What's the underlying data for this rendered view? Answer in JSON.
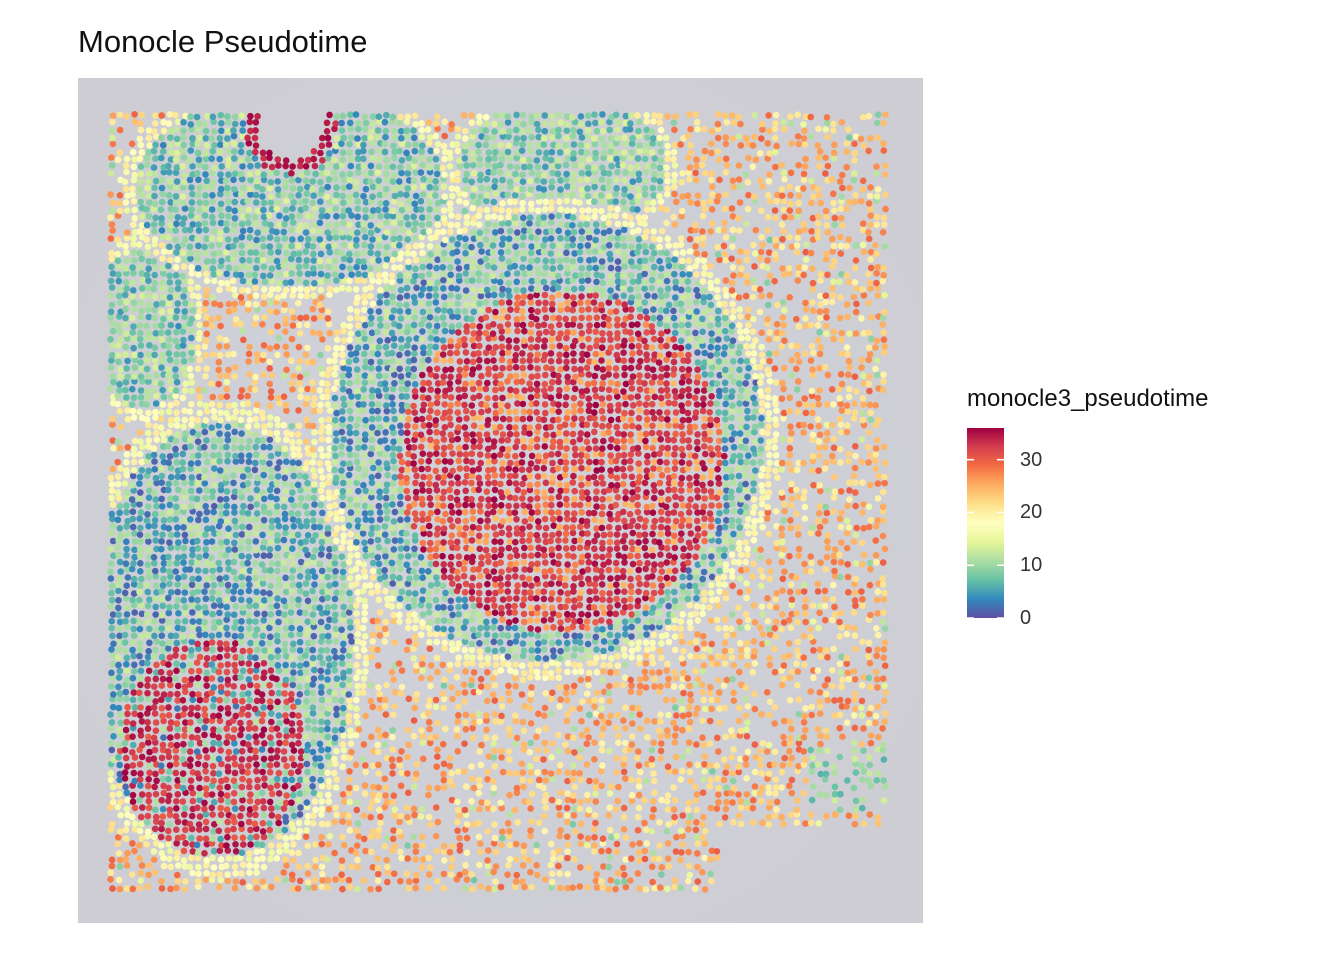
{
  "chart_data": {
    "type": "scatter",
    "title": "Monocle Pseudotime",
    "xlabel": "",
    "ylabel": "",
    "color_variable": "monocle3_pseudotime",
    "color_range": [
      0,
      36
    ],
    "legend": {
      "title": "monocle3_pseudotime",
      "ticks": [
        0,
        10,
        20,
        30
      ],
      "tick_labels": [
        "0",
        "10",
        "20",
        "30"
      ],
      "placement": "right",
      "colors": [
        "#5E4FA2",
        "#3288BD",
        "#66C2A5",
        "#ABDDA4",
        "#E6F598",
        "#FFFFBF",
        "#FEE08B",
        "#FDAE61",
        "#F46D43",
        "#D53E4F",
        "#9E0142"
      ]
    },
    "background": "tissue image (grey)",
    "grid": false,
    "axes_visible": false,
    "regions": [
      {
        "label": "lower-right large region center",
        "x": [
          0.5,
          0.66
        ],
        "y": [
          0.52,
          0.74
        ],
        "pseudotime": 33
      },
      {
        "label": "lower-right large region ring",
        "x": [
          0.47,
          0.67
        ],
        "y": [
          0.4,
          0.86
        ],
        "pseudotime": 7
      },
      {
        "label": "left lower region center",
        "x": [
          0.08,
          0.2
        ],
        "y": [
          0.1,
          0.32
        ],
        "pseudotime": 34
      },
      {
        "label": "left lower region ring",
        "x": [
          0.02,
          0.35
        ],
        "y": [
          0.05,
          0.62
        ],
        "pseudotime": 7
      },
      {
        "label": "upper-left region",
        "x": [
          0.05,
          0.42
        ],
        "y": [
          0.74,
          0.98
        ],
        "pseudotime": 9
      },
      {
        "label": "upper-middle region",
        "x": [
          0.44,
          0.72
        ],
        "y": [
          0.82,
          0.98
        ],
        "pseudotime": 10
      },
      {
        "label": "interstitial",
        "x": [
          0,
          1
        ],
        "y": [
          0,
          1
        ],
        "pseudotime": 24
      }
    ]
  }
}
